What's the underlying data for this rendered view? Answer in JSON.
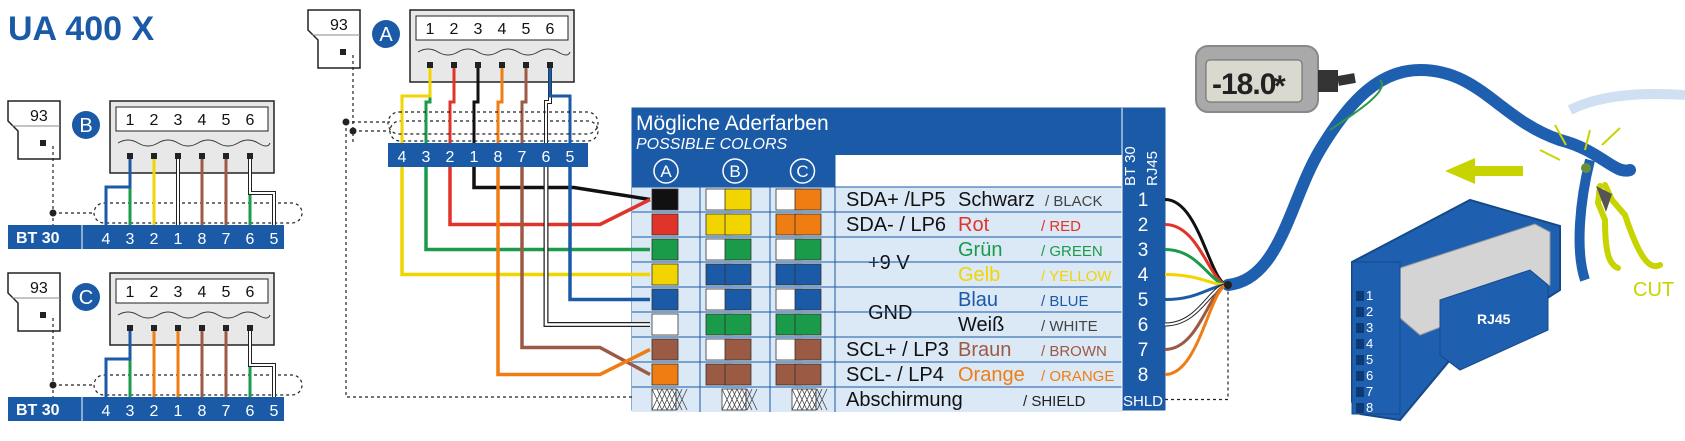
{
  "title": "UA 400 X",
  "plug_number": "93",
  "connectors": {
    "A": {
      "letter": "A"
    },
    "B": {
      "letter": "B"
    },
    "C": {
      "letter": "C"
    }
  },
  "terminal_pins": [
    "1",
    "2",
    "3",
    "4",
    "5",
    "6"
  ],
  "bt30_label": "BT 30",
  "bt30_pins": [
    "4",
    "3",
    "2",
    "1",
    "8",
    "7",
    "6",
    "5"
  ],
  "table": {
    "title_de": "Mögliche Aderfarben",
    "title_en": "POSSIBLE COLORS",
    "col_letters": [
      "A",
      "B",
      "C"
    ],
    "right_header_1": "BT 30",
    "right_header_2": "RJ45",
    "rows": [
      {
        "signal": "SDA+ /LP5",
        "de": "Schwarz",
        "en": "/ BLACK",
        "de_color": "#111111",
        "num": "1"
      },
      {
        "signal": "SDA- / LP6",
        "de": "Rot",
        "en": "/ RED",
        "de_color": "#e0342a",
        "num": "2"
      },
      {
        "signal": "+9 V",
        "de": "Grün",
        "en": "/ GREEN",
        "de_color": "#1a9b4a",
        "num": "3"
      },
      {
        "signal": "",
        "de": "Gelb",
        "en": "/ YELLOW",
        "de_color": "#f2d400",
        "num": "4"
      },
      {
        "signal": "GND",
        "de": "Blau",
        "en": "/ BLUE",
        "de_color": "#1a5aa6",
        "num": "5"
      },
      {
        "signal": "",
        "de": "Weiß",
        "en": "/ WHITE",
        "de_color": "#111111",
        "num": "6"
      },
      {
        "signal": "SCL+ / LP3",
        "de": "Braun",
        "en": "/ BROWN",
        "de_color": "#9b5a44",
        "num": "7"
      },
      {
        "signal": "SCL- /  LP4",
        "de": "Orange",
        "en": "/ ORANGE",
        "de_color": "#ef7d12",
        "num": "8"
      },
      {
        "signal": "Abschirmung",
        "de": "",
        "en": "/ SHIELD",
        "de_color": "#111111",
        "num": "SHLD"
      }
    ]
  },
  "display_reading": "-18.0",
  "display_symbol": "*",
  "rj45_label": "RJ45",
  "rj45_pins": [
    "1",
    "2",
    "3",
    "4",
    "5",
    "6",
    "7",
    "8"
  ],
  "cut_label": "CUT",
  "colors": {
    "brand_blue": "#1a5aa6",
    "header_blue": "#1a5aa6",
    "cable_blue": "#1f5fb0",
    "cut_green": "#c8d400"
  }
}
